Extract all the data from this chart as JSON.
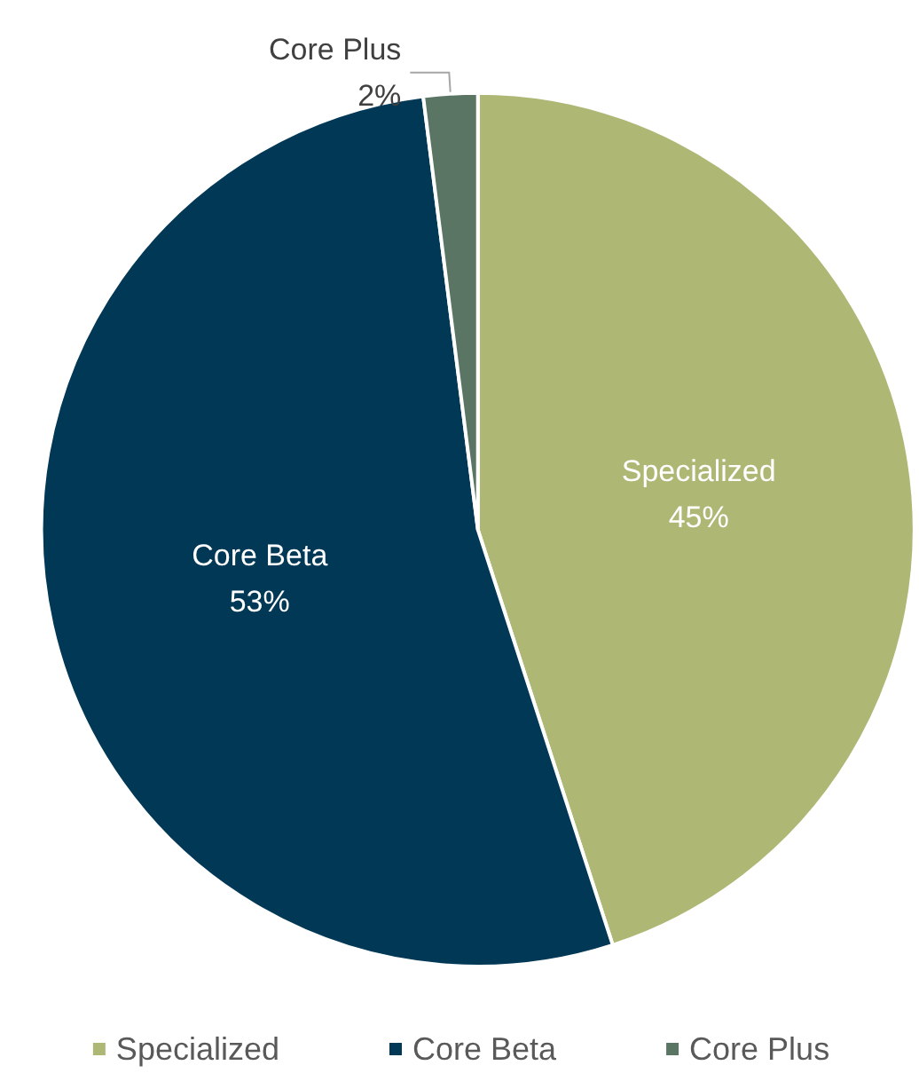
{
  "chart_data": {
    "type": "pie",
    "categories": [
      "Specialized",
      "Core Beta",
      "Core Plus"
    ],
    "values": [
      45,
      53,
      2
    ],
    "colors": [
      "#afb775",
      "#003856",
      "#5a7564"
    ],
    "value_labels": [
      "45%",
      "53%",
      "2%"
    ],
    "legend": "bottom"
  }
}
